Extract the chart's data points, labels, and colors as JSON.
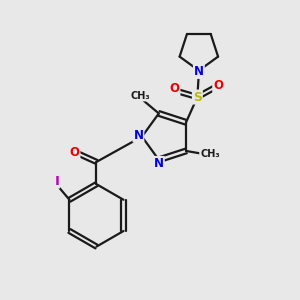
{
  "bg_color": "#e8e8e8",
  "bond_color": "#1a1a1a",
  "bond_width": 1.6,
  "atom_colors": {
    "N": "#0000ee",
    "O": "#ee0000",
    "S": "#bbbb00",
    "I": "#bb00bb",
    "C": "#1a1a1a"
  },
  "font_size_atom": 8.5,
  "font_size_me": 7.0
}
